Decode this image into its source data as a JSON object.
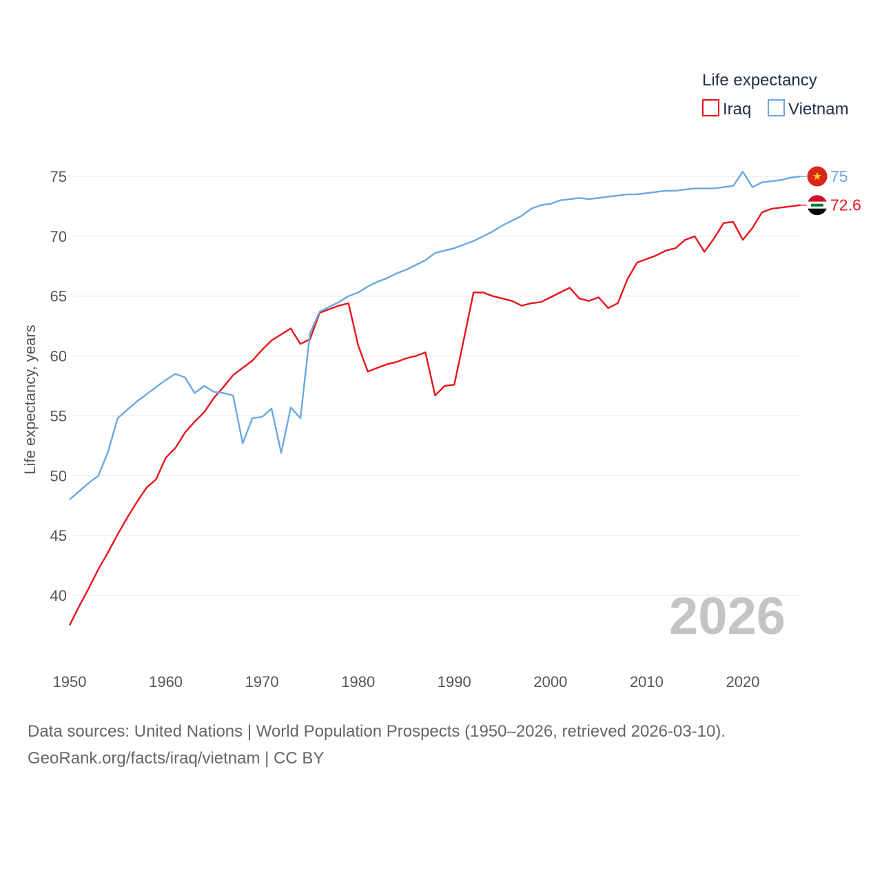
{
  "chart_data": {
    "type": "line",
    "ylabel": "Life expectancy, years",
    "xlabel": "",
    "xlim": [
      1950,
      2026
    ],
    "ylim": [
      35,
      77
    ],
    "yticks": [
      40,
      45,
      50,
      55,
      60,
      65,
      70,
      75
    ],
    "xticks": [
      1950,
      1960,
      1970,
      1980,
      1990,
      2000,
      2010,
      2020
    ],
    "legend_title": "Life expectancy",
    "year_overlay": "2026",
    "series": [
      {
        "name": "Iraq",
        "color": "#e8141b",
        "end_label": "72.6",
        "flag": "iraq-flag",
        "x": [
          1950,
          1951,
          1952,
          1953,
          1954,
          1955,
          1956,
          1957,
          1958,
          1959,
          1960,
          1961,
          1962,
          1963,
          1964,
          1965,
          1966,
          1967,
          1968,
          1969,
          1970,
          1971,
          1972,
          1973,
          1974,
          1975,
          1976,
          1977,
          1978,
          1979,
          1980,
          1981,
          1982,
          1983,
          1984,
          1985,
          1986,
          1987,
          1988,
          1989,
          1990,
          1991,
          1992,
          1993,
          1994,
          1995,
          1996,
          1997,
          1998,
          1999,
          2000,
          2001,
          2002,
          2003,
          2004,
          2005,
          2006,
          2007,
          2008,
          2009,
          2010,
          2011,
          2012,
          2013,
          2014,
          2015,
          2016,
          2017,
          2018,
          2019,
          2020,
          2021,
          2022,
          2023,
          2024,
          2025,
          2026
        ],
        "values": [
          37.5,
          39.1,
          40.6,
          42.2,
          43.6,
          45.1,
          46.5,
          47.8,
          49.0,
          49.7,
          51.5,
          52.3,
          53.6,
          54.5,
          55.3,
          56.5,
          57.4,
          58.4,
          59.0,
          59.6,
          60.5,
          61.3,
          61.8,
          62.3,
          61.0,
          61.4,
          63.6,
          63.9,
          64.2,
          64.4,
          60.9,
          58.7,
          59.0,
          59.3,
          59.5,
          59.8,
          60.0,
          60.3,
          56.7,
          57.5,
          57.6,
          61.4,
          65.3,
          65.3,
          65.0,
          64.8,
          64.6,
          64.2,
          64.4,
          64.5,
          64.9,
          65.3,
          65.7,
          64.8,
          64.6,
          64.9,
          64.0,
          64.4,
          66.4,
          67.8,
          68.1,
          68.4,
          68.8,
          69.0,
          69.7,
          70.0,
          68.7,
          69.8,
          71.1,
          71.2,
          69.7,
          70.7,
          72.0,
          72.3,
          72.4,
          72.5,
          72.6
        ]
      },
      {
        "name": "Vietnam",
        "color": "#6aa8e2",
        "end_label": "75",
        "flag": "vietnam-flag",
        "x": [
          1950,
          1951,
          1952,
          1953,
          1954,
          1955,
          1956,
          1957,
          1958,
          1959,
          1960,
          1961,
          1962,
          1963,
          1964,
          1965,
          1966,
          1967,
          1968,
          1969,
          1970,
          1971,
          1972,
          1973,
          1974,
          1975,
          1976,
          1977,
          1978,
          1979,
          1980,
          1981,
          1982,
          1983,
          1984,
          1985,
          1986,
          1987,
          1988,
          1989,
          1990,
          1991,
          1992,
          1993,
          1994,
          1995,
          1996,
          1997,
          1998,
          1999,
          2000,
          2001,
          2002,
          2003,
          2004,
          2005,
          2006,
          2007,
          2008,
          2009,
          2010,
          2011,
          2012,
          2013,
          2014,
          2015,
          2016,
          2017,
          2018,
          2019,
          2020,
          2021,
          2022,
          2023,
          2024,
          2025,
          2026
        ],
        "values": [
          48.0,
          48.7,
          49.4,
          50.0,
          52.0,
          54.8,
          55.5,
          56.2,
          56.8,
          57.4,
          58.0,
          58.5,
          58.2,
          56.9,
          57.5,
          57.0,
          56.9,
          56.7,
          52.7,
          54.8,
          54.9,
          55.6,
          51.9,
          55.7,
          54.8,
          61.9,
          63.7,
          64.1,
          64.5,
          65.0,
          65.3,
          65.8,
          66.2,
          66.5,
          66.9,
          67.2,
          67.6,
          68.0,
          68.6,
          68.8,
          69.0,
          69.3,
          69.6,
          70.0,
          70.4,
          70.9,
          71.3,
          71.7,
          72.3,
          72.6,
          72.7,
          73.0,
          73.1,
          73.2,
          73.1,
          73.2,
          73.3,
          73.4,
          73.5,
          73.5,
          73.6,
          73.7,
          73.8,
          73.8,
          73.9,
          74.0,
          74.0,
          74.0,
          74.1,
          74.2,
          75.4,
          74.1,
          74.5,
          74.6,
          74.7,
          74.9,
          75.0
        ]
      }
    ]
  },
  "footer": {
    "line1": "Data sources: United Nations | World Population Prospects (1950–2026, retrieved 2026-03-10).",
    "line2": "GeoRank.org/facts/iraq/vietnam | CC BY"
  }
}
